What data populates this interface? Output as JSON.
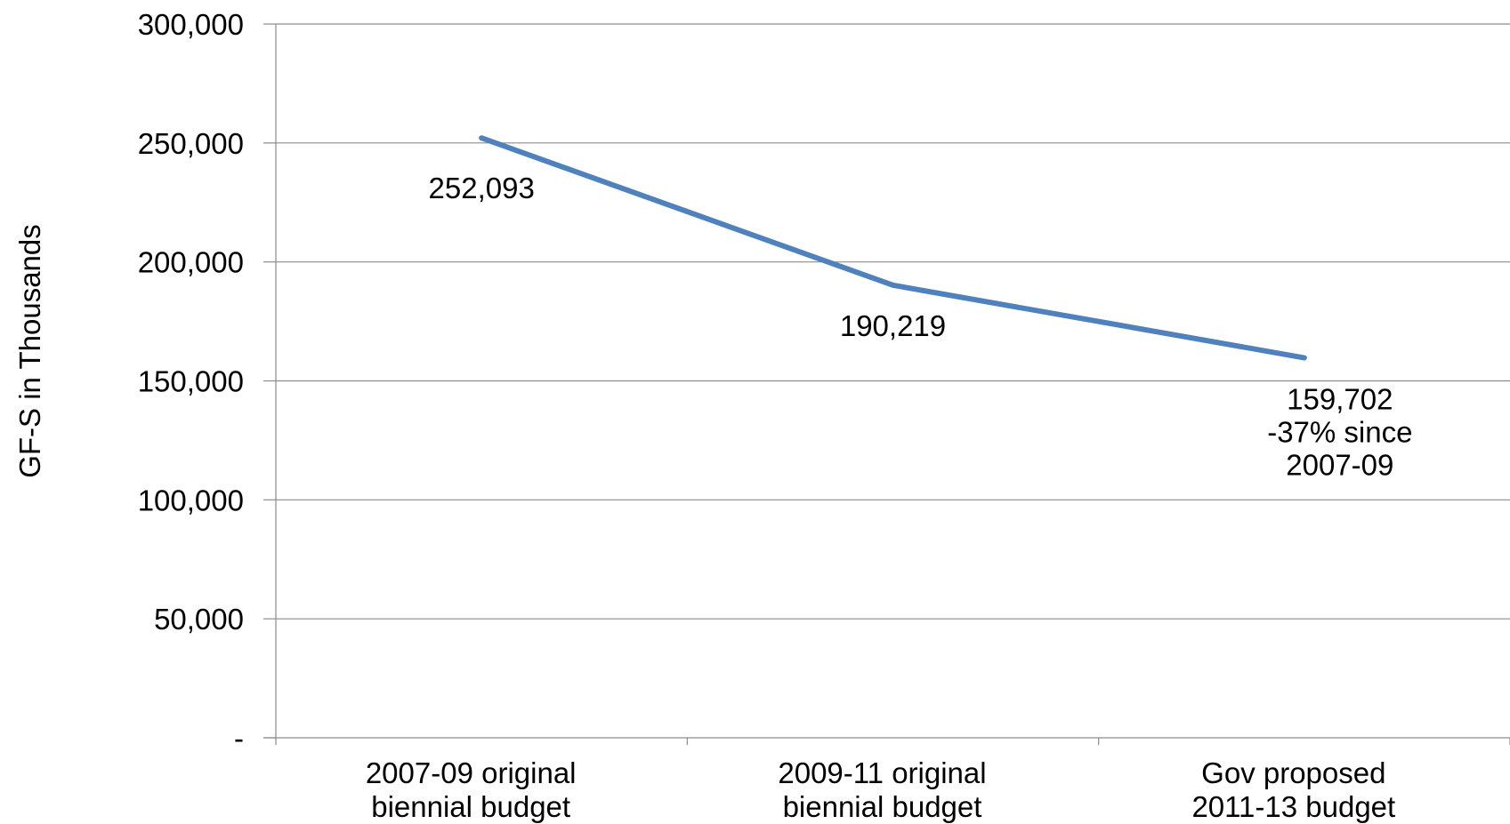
{
  "chart_data": {
    "type": "line",
    "title": "",
    "xlabel": "",
    "ylabel": "GF-S in Thousands",
    "categories": [
      [
        "2007-09 original",
        "biennial budget"
      ],
      [
        "2009-11 original",
        "biennial budget"
      ],
      [
        "Gov proposed",
        "2011-13 budget"
      ]
    ],
    "series": [
      {
        "values": [
          252093,
          190219,
          159702
        ]
      }
    ],
    "data_labels": [
      [
        "252,093"
      ],
      [
        "190,219"
      ],
      [
        "159,702",
        "-37% since",
        "2007-09"
      ]
    ],
    "yticks": [
      "-",
      "50,000",
      "100,000",
      "150,000",
      "200,000",
      "250,000",
      "300,000"
    ],
    "ylim": [
      0,
      300000
    ],
    "ytick_step": 50000,
    "grid": true,
    "legend": "none",
    "line_color": "#4f81bd"
  }
}
